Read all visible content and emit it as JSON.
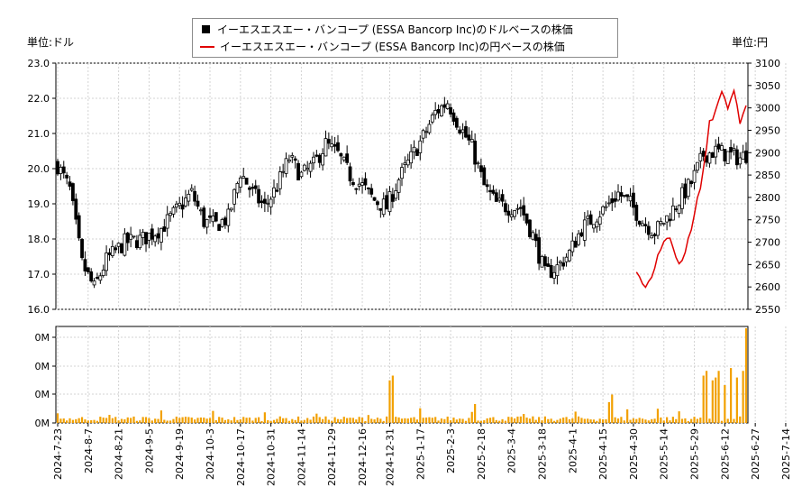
{
  "legend": {
    "dollar_series": "イーエスエスエー・バンコープ (ESSA Bancorp Inc)のドルベースの株価",
    "yen_series": "イーエスエスエー・バンコープ (ESSA Bancorp Inc)の円ベースの株価"
  },
  "units": {
    "left": "単位:ドル",
    "right": "単位:円"
  },
  "colors": {
    "up_fill": "#ffffff",
    "down_fill": "#000000",
    "yen_line": "#e00000",
    "volume_bar": "#f2a000",
    "grid": "#d3d3d3"
  },
  "chart_data": {
    "type": "candlestick",
    "x_tick_labels": [
      "2024-7-23",
      "2024-8-7",
      "2024-8-21",
      "2024-9-5",
      "2024-9-19",
      "2024-10-3",
      "2024-10-17",
      "2024-10-31",
      "2024-11-14",
      "2024-11-29",
      "2024-12-16",
      "2024-12-31",
      "2025-1-17",
      "2025-2-3",
      "2025-2-18",
      "2025-3-4",
      "2025-3-18",
      "2025-4-1",
      "2025-4-15",
      "2025-4-30",
      "2025-5-14",
      "2025-5-29",
      "2025-6-12",
      "2025-6-27",
      "2025-7-14"
    ],
    "y_left": {
      "label": "単位:ドル",
      "min": 16.0,
      "max": 23.0,
      "ticks": [
        "16.0",
        "17.0",
        "18.0",
        "19.0",
        "20.0",
        "21.0",
        "22.0",
        "23.0"
      ]
    },
    "y_right": {
      "label": "単位:円",
      "min": 2550,
      "max": 3100,
      "ticks": [
        "2550",
        "2600",
        "2650",
        "2700",
        "2750",
        "2800",
        "2850",
        "2900",
        "2950",
        "3000",
        "3050",
        "3100"
      ]
    },
    "volume_axis": {
      "ticks": [
        "0M",
        "0M",
        "0M",
        "0M"
      ]
    },
    "dollar_close_keypoints": [
      [
        0,
        20.1
      ],
      [
        4,
        19.4
      ],
      [
        8,
        17.3
      ],
      [
        12,
        16.6
      ],
      [
        16,
        17.4
      ],
      [
        22,
        17.9
      ],
      [
        28,
        18.0
      ],
      [
        34,
        18.3
      ],
      [
        40,
        18.9
      ],
      [
        44,
        19.3
      ],
      [
        48,
        18.5
      ],
      [
        52,
        18.4
      ],
      [
        56,
        18.6
      ],
      [
        60,
        19.9
      ],
      [
        64,
        19.3
      ],
      [
        68,
        18.9
      ],
      [
        72,
        19.5
      ],
      [
        76,
        20.3
      ],
      [
        80,
        19.8
      ],
      [
        84,
        20.1
      ],
      [
        88,
        20.7
      ],
      [
        92,
        20.4
      ],
      [
        96,
        19.8
      ],
      [
        100,
        19.5
      ],
      [
        104,
        19.1
      ],
      [
        108,
        18.9
      ],
      [
        112,
        19.7
      ],
      [
        116,
        20.3
      ],
      [
        120,
        20.9
      ],
      [
        124,
        21.6
      ],
      [
        128,
        21.9
      ],
      [
        132,
        21.2
      ],
      [
        136,
        20.6
      ],
      [
        140,
        19.5
      ],
      [
        144,
        19.0
      ],
      [
        148,
        18.9
      ],
      [
        152,
        18.9
      ],
      [
        156,
        18.1
      ],
      [
        160,
        17.0
      ],
      [
        164,
        17.2
      ],
      [
        168,
        17.6
      ],
      [
        172,
        18.3
      ],
      [
        176,
        18.6
      ],
      [
        180,
        18.9
      ],
      [
        184,
        19.3
      ],
      [
        188,
        19.0
      ],
      [
        192,
        18.5
      ],
      [
        196,
        18.2
      ],
      [
        200,
        18.6
      ],
      [
        204,
        19.1
      ],
      [
        208,
        19.6
      ],
      [
        212,
        20.4
      ],
      [
        216,
        20.5
      ],
      [
        220,
        20.4
      ],
      [
        224,
        20.3
      ],
      [
        226,
        20.4
      ]
    ],
    "yen_close_keypoints": [
      [
        190,
        2640
      ],
      [
        193,
        2600
      ],
      [
        195,
        2620
      ],
      [
        198,
        2690
      ],
      [
        201,
        2710
      ],
      [
        204,
        2650
      ],
      [
        206,
        2680
      ],
      [
        209,
        2760
      ],
      [
        212,
        2860
      ],
      [
        214,
        2970
      ],
      [
        216,
        2990
      ],
      [
        218,
        3040
      ],
      [
        220,
        3000
      ],
      [
        222,
        3040
      ],
      [
        224,
        2960
      ],
      [
        226,
        3000
      ]
    ],
    "volume_spikes": [
      [
        109,
        0.45
      ],
      [
        110,
        0.5
      ],
      [
        137,
        0.2
      ],
      [
        181,
        0.22
      ],
      [
        182,
        0.3
      ],
      [
        197,
        0.15
      ],
      [
        212,
        0.5
      ],
      [
        213,
        0.55
      ],
      [
        215,
        0.45
      ],
      [
        216,
        0.48
      ],
      [
        217,
        0.55
      ],
      [
        219,
        0.4
      ],
      [
        221,
        0.58
      ],
      [
        223,
        0.48
      ],
      [
        225,
        0.55
      ],
      [
        226,
        1.0
      ]
    ]
  }
}
